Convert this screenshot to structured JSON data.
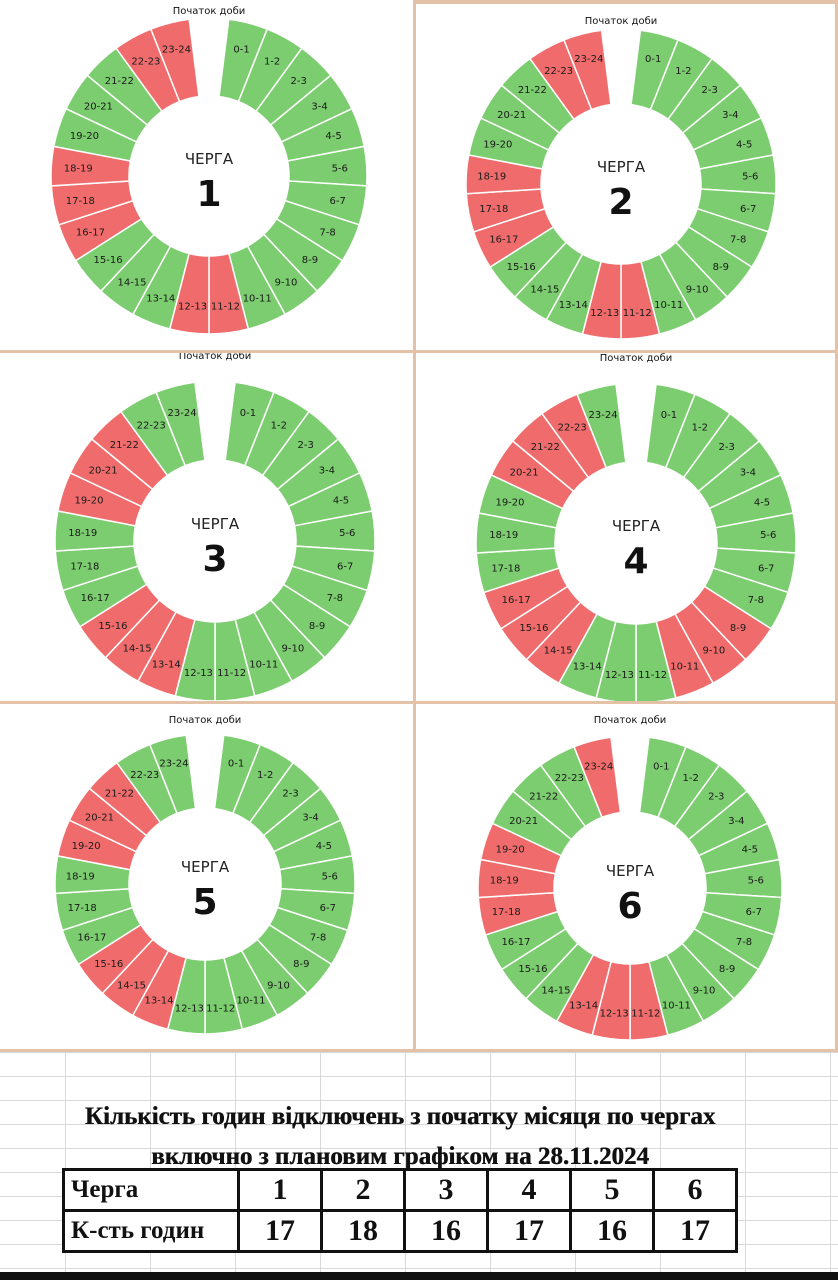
{
  "colors": {
    "on": "#7ccd6f",
    "off": "#f06c6c",
    "border": "#e3c2a8"
  },
  "start_label": "Початок доби",
  "queue_word": "ЧЕРГА",
  "hour_labels": [
    "0-1",
    "1-2",
    "2-3",
    "3-4",
    "4-5",
    "5-6",
    "6-7",
    "7-8",
    "8-9",
    "9-10",
    "10-11",
    "11-12",
    "12-13",
    "13-14",
    "14-15",
    "15-16",
    "16-17",
    "17-18",
    "18-19",
    "19-20",
    "20-21",
    "21-22",
    "22-23",
    "23-24"
  ],
  "queues": [
    {
      "number": "1",
      "off_hours": [
        11,
        12,
        16,
        17,
        18,
        22,
        23
      ]
    },
    {
      "number": "2",
      "off_hours": [
        11,
        12,
        16,
        17,
        18,
        22,
        23
      ]
    },
    {
      "number": "3",
      "off_hours": [
        13,
        14,
        15,
        19,
        20,
        21
      ]
    },
    {
      "number": "4",
      "off_hours": [
        8,
        9,
        10,
        14,
        15,
        16,
        20,
        21,
        22
      ]
    },
    {
      "number": "5",
      "off_hours": [
        13,
        14,
        15,
        19,
        20,
        21
      ]
    },
    {
      "number": "6",
      "off_hours": [
        11,
        12,
        13,
        17,
        18,
        19,
        23
      ]
    }
  ],
  "summary": {
    "title_line1": "Кількість годин відключень з початку місяця по чергах",
    "title_line2": "включно з плановим графіком на 28.11.2024",
    "row1_header": "Черга",
    "row2_header": "К-сть годин",
    "queue_numbers": [
      "1",
      "2",
      "3",
      "4",
      "5",
      "6"
    ],
    "hours": [
      "17",
      "18",
      "16",
      "17",
      "16",
      "17"
    ]
  }
}
